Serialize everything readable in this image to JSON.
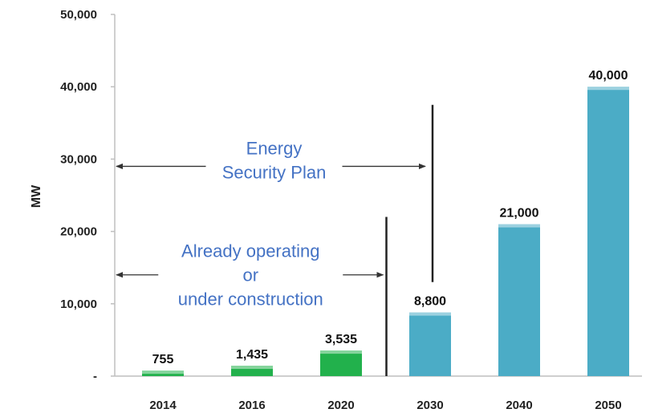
{
  "chart_data": {
    "type": "bar",
    "categories": [
      "2014",
      "2016",
      "2020",
      "2030",
      "2040",
      "2050"
    ],
    "values": [
      755,
      1435,
      3535,
      8800,
      21000,
      40000
    ],
    "data_labels": [
      "755",
      "1,435",
      "3,535",
      "8,800",
      "21,000",
      "40,000"
    ],
    "bar_colors": [
      "#22b14c",
      "#22b14c",
      "#22b14c",
      "#4bacc6",
      "#4bacc6",
      "#4bacc6"
    ],
    "ylabel": "MW",
    "ylim": [
      0,
      50000
    ],
    "yticks": [
      0,
      10000,
      20000,
      30000,
      40000,
      50000
    ],
    "ytick_labels": [
      "-",
      "10,000",
      "20,000",
      "30,000",
      "40,000",
      "50,000"
    ],
    "grid": false,
    "annotations": [
      {
        "lines": [
          "Energy",
          "Security Plan"
        ],
        "y_value": 29000,
        "span": [
          "2014",
          "2030"
        ]
      },
      {
        "lines": [
          "Already operating",
          "or",
          "under construction"
        ],
        "y_value": 14000,
        "span": [
          "2014",
          "2020"
        ]
      }
    ]
  }
}
